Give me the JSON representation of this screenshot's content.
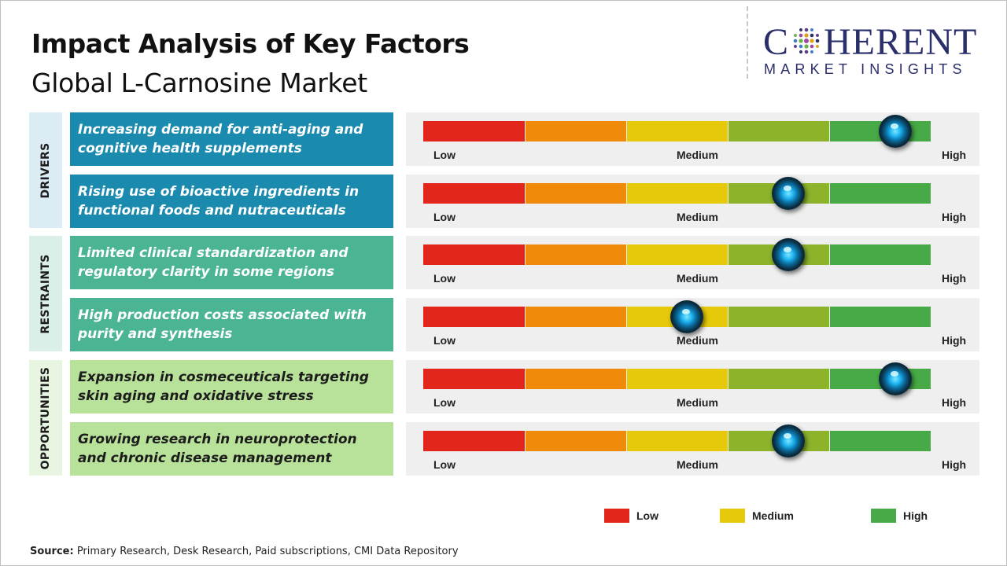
{
  "header": {
    "title": "Impact Analysis of Key Factors",
    "subtitle": "Global L-Carnosine Market"
  },
  "logo": {
    "word_before": "C",
    "word_after": "HERENT",
    "tagline": "MARKET INSIGHTS",
    "icon": "globe-dots-icon",
    "color": "#2a2e6b"
  },
  "scale_colors": [
    "#e2261b",
    "#ef8a0a",
    "#e6c90a",
    "#8db32a",
    "#47aa46"
  ],
  "scale_labels": {
    "low": "Low",
    "medium": "Medium",
    "high": "High"
  },
  "categories": [
    {
      "label": "DRIVERS",
      "bg": "#dcecf5",
      "factor_bg": "#1a8aaf",
      "factor_color": "#ffffff"
    },
    {
      "label": "RESTRAINTS",
      "bg": "#d9efe7",
      "factor_bg": "#4ab495",
      "factor_color": "#ffffff"
    },
    {
      "label": "OPPORTUNITIES",
      "bg": "#e7f5e1",
      "factor_bg": "#b8e29a",
      "factor_color": "#1c1c1c"
    }
  ],
  "chart_data": {
    "type": "impact-gauge",
    "scale": [
      "Low",
      "Medium",
      "High"
    ],
    "factors": [
      {
        "category": "DRIVERS",
        "text": "Increasing demand for anti-aging and cognitive health supplements",
        "impact": 0.93
      },
      {
        "category": "DRIVERS",
        "text": "Rising use of bioactive ingredients in functional foods and nutraceuticals",
        "impact": 0.72
      },
      {
        "category": "RESTRAINTS",
        "text": "Limited clinical standardization and regulatory clarity in some regions",
        "impact": 0.72
      },
      {
        "category": "RESTRAINTS",
        "text": "High production costs associated with purity and synthesis",
        "impact": 0.52
      },
      {
        "category": "OPPORTUNITIES",
        "text": "Expansion in cosmeceuticals targeting skin aging and oxidative stress",
        "impact": 0.93
      },
      {
        "category": "OPPORTUNITIES",
        "text": "Growing research in neuroprotection and chronic disease management",
        "impact": 0.72
      }
    ],
    "legend": [
      {
        "label": "Low",
        "color": "#e2261b"
      },
      {
        "label": "Medium",
        "color": "#e6c90a"
      },
      {
        "label": "High",
        "color": "#47aa46"
      }
    ]
  },
  "source": {
    "label": "Source:",
    "text": " Primary Research, Desk Research, Paid subscriptions, CMI Data Repository"
  }
}
